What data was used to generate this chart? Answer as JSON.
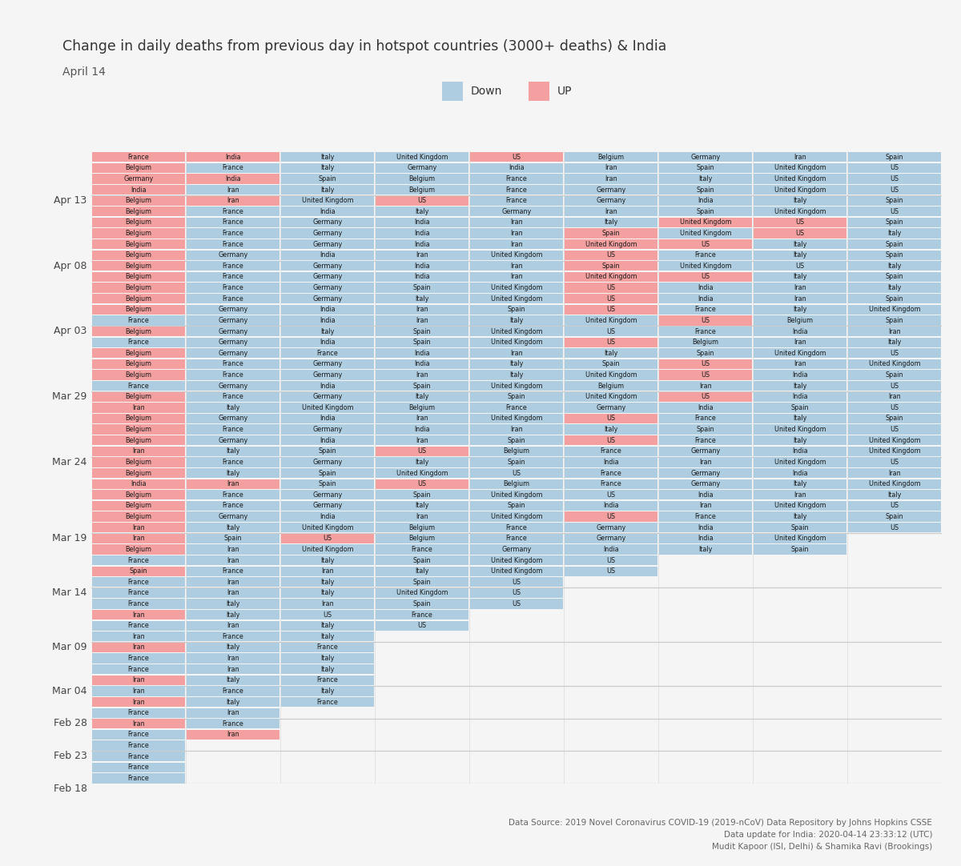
{
  "title": "Change in daily deaths from previous day in hotspot countries (3000+ deaths) & India",
  "subtitle": "April 14",
  "legend_down": "Down",
  "legend_up": "UP",
  "down_color": "#aecde0",
  "up_color": "#f4a0a0",
  "bg_color": "#f5f5f5",
  "footer": "Data Source: 2019 Novel Coronavirus COVID-19 (2019-nCoV) Data Repository by Johns Hopkins CSSE\nData update for India: 2020-04-14 23:33:12 (UTC)\nMudit Kapoor (ISI, Delhi) & Shamika Ravi (Brookings)",
  "rows_top_to_bottom": [
    {
      "countries": [
        "France",
        "India",
        "Italy",
        "United Kingdom",
        "US",
        "Belgium",
        "Germany",
        "Iran",
        "Spain"
      ],
      "colors": [
        "U",
        "U",
        "D",
        "D",
        "U",
        "D",
        "D",
        "D",
        "D"
      ]
    },
    {
      "countries": [
        "Belgium",
        "France",
        "Italy",
        "Germany",
        "India",
        "Iran",
        "Spain",
        "United Kingdom",
        "US"
      ],
      "colors": [
        "U",
        "D",
        "D",
        "D",
        "D",
        "D",
        "D",
        "D",
        "D"
      ]
    },
    {
      "countries": [
        "Germany",
        "India",
        "Spain",
        "Belgium",
        "France",
        "Iran",
        "Italy",
        "United Kingdom",
        "US"
      ],
      "colors": [
        "U",
        "U",
        "D",
        "D",
        "D",
        "D",
        "D",
        "D",
        "D"
      ]
    },
    {
      "countries": [
        "India",
        "Iran",
        "Italy",
        "Belgium",
        "France",
        "Germany",
        "Spain",
        "United Kingdom",
        "US"
      ],
      "colors": [
        "U",
        "D",
        "D",
        "D",
        "D",
        "D",
        "D",
        "D",
        "D"
      ]
    },
    {
      "countries": [
        "Belgium",
        "Iran",
        "United Kingdom",
        "US",
        "France",
        "Germany",
        "India",
        "Italy",
        "Spain"
      ],
      "colors": [
        "U",
        "U",
        "D",
        "U",
        "D",
        "D",
        "D",
        "D",
        "D"
      ]
    },
    {
      "countries": [
        "Belgium",
        "France",
        "India",
        "Italy",
        "Germany",
        "Iran",
        "Spain",
        "United Kingdom",
        "US"
      ],
      "colors": [
        "U",
        "D",
        "D",
        "D",
        "D",
        "D",
        "D",
        "D",
        "D"
      ]
    },
    {
      "countries": [
        "Belgium",
        "France",
        "Germany",
        "India",
        "Iran",
        "Italy",
        "United Kingdom",
        "US",
        "Spain"
      ],
      "colors": [
        "U",
        "D",
        "D",
        "D",
        "D",
        "D",
        "U",
        "U",
        "D"
      ]
    },
    {
      "countries": [
        "Belgium",
        "France",
        "Germany",
        "India",
        "Iran",
        "Spain",
        "United Kingdom",
        "US",
        "Italy"
      ],
      "colors": [
        "U",
        "D",
        "D",
        "D",
        "D",
        "U",
        "D",
        "U",
        "D"
      ]
    },
    {
      "countries": [
        "Belgium",
        "France",
        "Germany",
        "India",
        "Iran",
        "United Kingdom",
        "US",
        "Italy",
        "Spain"
      ],
      "colors": [
        "U",
        "D",
        "D",
        "D",
        "D",
        "U",
        "U",
        "D",
        "D"
      ]
    },
    {
      "countries": [
        "Belgium",
        "Germany",
        "India",
        "Iran",
        "United Kingdom",
        "US",
        "France",
        "Italy",
        "Spain"
      ],
      "colors": [
        "U",
        "D",
        "D",
        "D",
        "D",
        "U",
        "D",
        "D",
        "D"
      ]
    },
    {
      "countries": [
        "Belgium",
        "France",
        "Germany",
        "India",
        "Iran",
        "Spain",
        "United Kingdom",
        "US",
        "Italy"
      ],
      "colors": [
        "U",
        "D",
        "D",
        "D",
        "D",
        "U",
        "D",
        "D",
        "D"
      ]
    },
    {
      "countries": [
        "Belgium",
        "France",
        "Germany",
        "India",
        "Iran",
        "United Kingdom",
        "US",
        "Italy",
        "Spain"
      ],
      "colors": [
        "U",
        "D",
        "D",
        "D",
        "D",
        "U",
        "U",
        "D",
        "D"
      ]
    },
    {
      "countries": [
        "Belgium",
        "France",
        "Germany",
        "Spain",
        "United Kingdom",
        "US",
        "India",
        "Iran",
        "Italy"
      ],
      "colors": [
        "U",
        "D",
        "D",
        "D",
        "D",
        "U",
        "D",
        "D",
        "D"
      ]
    },
    {
      "countries": [
        "Belgium",
        "France",
        "Germany",
        "Italy",
        "United Kingdom",
        "US",
        "India",
        "Iran",
        "Spain"
      ],
      "colors": [
        "U",
        "D",
        "D",
        "D",
        "D",
        "U",
        "D",
        "D",
        "D"
      ]
    },
    {
      "countries": [
        "Belgium",
        "Germany",
        "India",
        "Iran",
        "Spain",
        "US",
        "France",
        "Italy",
        "United Kingdom"
      ],
      "colors": [
        "U",
        "D",
        "D",
        "D",
        "D",
        "U",
        "D",
        "D",
        "D"
      ]
    },
    {
      "countries": [
        "France",
        "Germany",
        "India",
        "Iran",
        "Italy",
        "United Kingdom",
        "US",
        "Belgium",
        "Spain"
      ],
      "colors": [
        "D",
        "D",
        "D",
        "D",
        "D",
        "D",
        "U",
        "D",
        "D"
      ]
    },
    {
      "countries": [
        "Belgium",
        "Germany",
        "Italy",
        "Spain",
        "United Kingdom",
        "US",
        "France",
        "India",
        "Iran"
      ],
      "colors": [
        "U",
        "D",
        "D",
        "D",
        "D",
        "D",
        "D",
        "D",
        "D"
      ]
    },
    {
      "countries": [
        "France",
        "Germany",
        "India",
        "Spain",
        "United Kingdom",
        "US",
        "Belgium",
        "Iran",
        "Italy"
      ],
      "colors": [
        "D",
        "D",
        "D",
        "D",
        "D",
        "U",
        "D",
        "D",
        "D"
      ]
    },
    {
      "countries": [
        "Belgium",
        "Germany",
        "France",
        "India",
        "Iran",
        "Italy",
        "Spain",
        "United Kingdom",
        "US"
      ],
      "colors": [
        "U",
        "D",
        "D",
        "D",
        "D",
        "D",
        "D",
        "D",
        "D"
      ]
    },
    {
      "countries": [
        "Belgium",
        "France",
        "Germany",
        "India",
        "Italy",
        "Spain",
        "US",
        "Iran",
        "United Kingdom"
      ],
      "colors": [
        "U",
        "D",
        "D",
        "D",
        "D",
        "D",
        "U",
        "D",
        "D"
      ]
    },
    {
      "countries": [
        "Belgium",
        "France",
        "Germany",
        "Iran",
        "Italy",
        "United Kingdom",
        "US",
        "India",
        "Spain"
      ],
      "colors": [
        "U",
        "D",
        "D",
        "D",
        "D",
        "D",
        "U",
        "D",
        "D"
      ]
    },
    {
      "countries": [
        "France",
        "Germany",
        "India",
        "Spain",
        "United Kingdom",
        "Belgium",
        "Iran",
        "Italy",
        "US"
      ],
      "colors": [
        "D",
        "D",
        "D",
        "D",
        "D",
        "D",
        "D",
        "D",
        "D"
      ]
    },
    {
      "countries": [
        "Belgium",
        "France",
        "Germany",
        "Italy",
        "Spain",
        "United Kingdom",
        "US",
        "India",
        "Iran"
      ],
      "colors": [
        "U",
        "D",
        "D",
        "D",
        "D",
        "D",
        "U",
        "D",
        "D"
      ]
    },
    {
      "countries": [
        "Iran",
        "Italy",
        "United Kingdom",
        "Belgium",
        "France",
        "Germany",
        "India",
        "Spain",
        "US"
      ],
      "colors": [
        "U",
        "D",
        "D",
        "D",
        "D",
        "D",
        "D",
        "D",
        "D"
      ]
    },
    {
      "countries": [
        "Belgium",
        "Germany",
        "India",
        "Iran",
        "United Kingdom",
        "US",
        "France",
        "Italy",
        "Spain"
      ],
      "colors": [
        "U",
        "D",
        "D",
        "D",
        "D",
        "U",
        "D",
        "D",
        "D"
      ]
    },
    {
      "countries": [
        "Belgium",
        "France",
        "Germany",
        "India",
        "Iran",
        "Italy",
        "Spain",
        "United Kingdom",
        "US"
      ],
      "colors": [
        "U",
        "D",
        "D",
        "D",
        "D",
        "D",
        "D",
        "D",
        "D"
      ]
    },
    {
      "countries": [
        "Belgium",
        "Germany",
        "India",
        "Iran",
        "Spain",
        "US",
        "France",
        "Italy",
        "United Kingdom"
      ],
      "colors": [
        "U",
        "D",
        "D",
        "D",
        "D",
        "U",
        "D",
        "D",
        "D"
      ]
    },
    {
      "countries": [
        "Iran",
        "Italy",
        "Spain",
        "US",
        "Belgium",
        "France",
        "Germany",
        "India",
        "United Kingdom"
      ],
      "colors": [
        "U",
        "D",
        "D",
        "U",
        "D",
        "D",
        "D",
        "D",
        "D"
      ]
    },
    {
      "countries": [
        "Belgium",
        "France",
        "Germany",
        "Italy",
        "Spain",
        "India",
        "Iran",
        "United Kingdom",
        "US"
      ],
      "colors": [
        "U",
        "D",
        "D",
        "D",
        "D",
        "D",
        "D",
        "D",
        "D"
      ]
    },
    {
      "countries": [
        "Belgium",
        "Italy",
        "Spain",
        "United Kingdom",
        "US",
        "France",
        "Germany",
        "India",
        "Iran"
      ],
      "colors": [
        "U",
        "D",
        "D",
        "D",
        "D",
        "D",
        "D",
        "D",
        "D"
      ]
    },
    {
      "countries": [
        "India",
        "Iran",
        "Spain",
        "US",
        "Belgium",
        "France",
        "Germany",
        "Italy",
        "United Kingdom"
      ],
      "colors": [
        "U",
        "U",
        "D",
        "U",
        "D",
        "D",
        "D",
        "D",
        "D"
      ]
    },
    {
      "countries": [
        "Belgium",
        "France",
        "Germany",
        "Spain",
        "United Kingdom",
        "US",
        "India",
        "Iran",
        "Italy"
      ],
      "colors": [
        "U",
        "D",
        "D",
        "D",
        "D",
        "D",
        "D",
        "D",
        "D"
      ]
    },
    {
      "countries": [
        "Belgium",
        "France",
        "Germany",
        "Italy",
        "Spain",
        "India",
        "Iran",
        "United Kingdom",
        "US"
      ],
      "colors": [
        "U",
        "D",
        "D",
        "D",
        "D",
        "D",
        "D",
        "D",
        "D"
      ]
    },
    {
      "countries": [
        "Belgium",
        "Germany",
        "India",
        "Iran",
        "United Kingdom",
        "US",
        "France",
        "Italy",
        "Spain"
      ],
      "colors": [
        "U",
        "D",
        "D",
        "D",
        "D",
        "U",
        "D",
        "D",
        "D"
      ]
    },
    {
      "countries": [
        "Iran",
        "Italy",
        "United Kingdom",
        "Belgium",
        "France",
        "Germany",
        "India",
        "Spain",
        "US"
      ],
      "colors": [
        "U",
        "D",
        "D",
        "D",
        "D",
        "D",
        "D",
        "D",
        "D"
      ]
    },
    {
      "countries": [
        "Iran",
        "Spain",
        "US",
        "Belgium",
        "France",
        "Germany",
        "India",
        "United Kingdom"
      ],
      "colors": [
        "U",
        "D",
        "U",
        "D",
        "D",
        "D",
        "D",
        "D"
      ]
    },
    {
      "countries": [
        "Belgium",
        "Iran",
        "United Kingdom",
        "France",
        "Germany",
        "India",
        "Italy",
        "Spain"
      ],
      "colors": [
        "U",
        "D",
        "D",
        "D",
        "D",
        "D",
        "D",
        "D"
      ]
    },
    {
      "countries": [
        "France",
        "Iran",
        "Italy",
        "Spain",
        "United Kingdom",
        "US"
      ],
      "colors": [
        "D",
        "D",
        "D",
        "D",
        "D",
        "D"
      ]
    },
    {
      "countries": [
        "Spain",
        "France",
        "Iran",
        "Italy",
        "United Kingdom",
        "US"
      ],
      "colors": [
        "U",
        "D",
        "D",
        "D",
        "D",
        "D"
      ]
    },
    {
      "countries": [
        "France",
        "Iran",
        "Italy",
        "Spain",
        "US"
      ],
      "colors": [
        "D",
        "D",
        "D",
        "D",
        "D"
      ]
    },
    {
      "countries": [
        "France",
        "Iran",
        "Italy",
        "United Kingdom",
        "US"
      ],
      "colors": [
        "D",
        "D",
        "D",
        "D",
        "D"
      ]
    },
    {
      "countries": [
        "France",
        "Italy",
        "Iran",
        "Spain",
        "US"
      ],
      "colors": [
        "D",
        "D",
        "D",
        "D",
        "D"
      ]
    },
    {
      "countries": [
        "Iran",
        "Italy",
        "US",
        "France"
      ],
      "colors": [
        "U",
        "D",
        "D",
        "D"
      ]
    },
    {
      "countries": [
        "France",
        "Iran",
        "Italy",
        "US"
      ],
      "colors": [
        "D",
        "D",
        "D",
        "D"
      ]
    },
    {
      "countries": [
        "Iran",
        "France",
        "Italy"
      ],
      "colors": [
        "D",
        "D",
        "D"
      ]
    },
    {
      "countries": [
        "Iran",
        "Italy",
        "France"
      ],
      "colors": [
        "U",
        "D",
        "D"
      ]
    },
    {
      "countries": [
        "France",
        "Iran",
        "Italy"
      ],
      "colors": [
        "D",
        "D",
        "D"
      ]
    },
    {
      "countries": [
        "France",
        "Iran",
        "Italy"
      ],
      "colors": [
        "D",
        "D",
        "D"
      ]
    },
    {
      "countries": [
        "Iran",
        "Italy",
        "France"
      ],
      "colors": [
        "U",
        "D",
        "D"
      ]
    },
    {
      "countries": [
        "Iran",
        "France",
        "Italy"
      ],
      "colors": [
        "D",
        "D",
        "D"
      ]
    },
    {
      "countries": [
        "Iran",
        "Italy",
        "France"
      ],
      "colors": [
        "U",
        "D",
        "D"
      ]
    },
    {
      "countries": [
        "France",
        "Iran"
      ],
      "colors": [
        "D",
        "D"
      ]
    },
    {
      "countries": [
        "Iran",
        "France"
      ],
      "colors": [
        "U",
        "D"
      ]
    },
    {
      "countries": [
        "France",
        "Iran"
      ],
      "colors": [
        "D",
        "U"
      ]
    },
    {
      "countries": [
        "France"
      ],
      "colors": [
        "D"
      ]
    },
    {
      "countries": [
        "France"
      ],
      "colors": [
        "D"
      ]
    },
    {
      "countries": [
        "France"
      ],
      "colors": [
        "D"
      ]
    },
    {
      "countries": [
        "France"
      ],
      "colors": [
        "D"
      ]
    }
  ],
  "date_labels_from_top": [
    {
      "label": "Apr 13",
      "row": 4
    },
    {
      "label": "Apr 08",
      "row": 10
    },
    {
      "label": "Apr 03",
      "row": 16
    },
    {
      "label": "Mar 29",
      "row": 22
    },
    {
      "label": "Mar 24",
      "row": 28
    },
    {
      "label": "Mar 19",
      "row": 35
    },
    {
      "label": "Mar 14",
      "row": 40
    },
    {
      "label": "Mar 09",
      "row": 45
    },
    {
      "label": "Mar 04",
      "row": 49
    },
    {
      "label": "Feb 28",
      "row": 52
    },
    {
      "label": "Feb 23",
      "row": 55
    },
    {
      "label": "Feb 18",
      "row": 58
    }
  ],
  "grid_lines_after_rows": [
    3,
    9,
    15,
    21,
    27,
    34,
    39,
    44,
    48,
    51,
    54,
    57
  ]
}
